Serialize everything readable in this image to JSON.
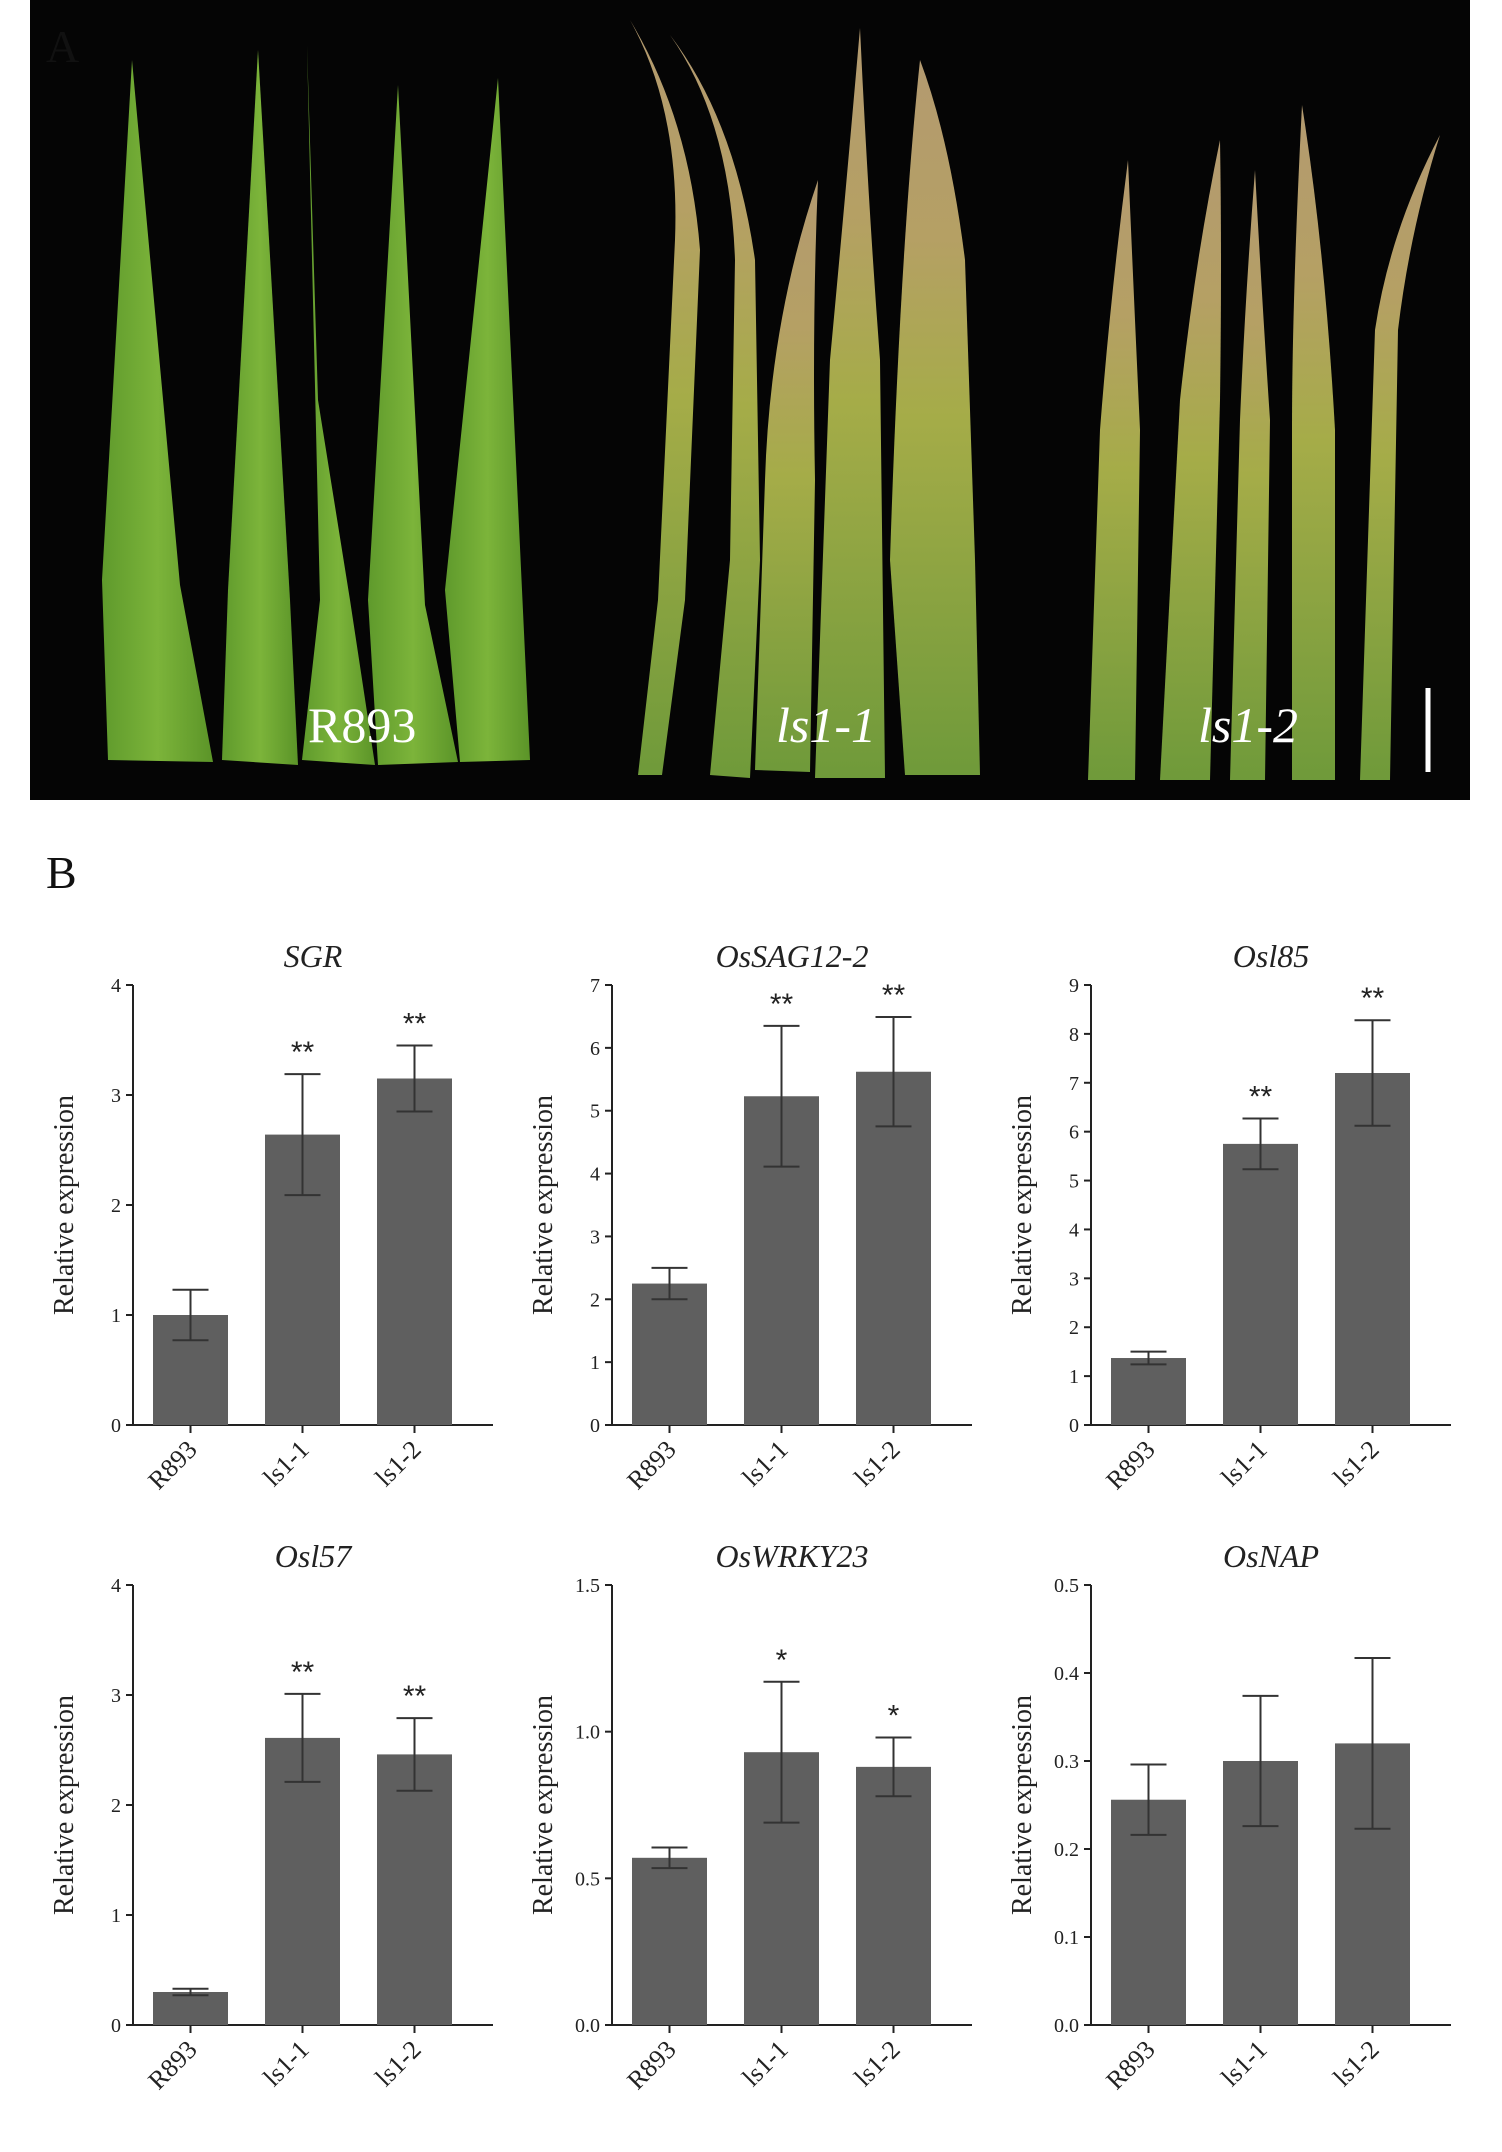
{
  "panel_a": {
    "letter": "A",
    "labels": [
      "R893",
      "ls1-1",
      "ls1-2"
    ]
  },
  "panel_b": {
    "letter": "B"
  },
  "chart_data": [
    {
      "type": "bar",
      "title": "SGR",
      "ylabel": "Relative expression",
      "ylim": [
        0,
        4
      ],
      "yticks": [
        "0",
        "1",
        "2",
        "3",
        "4"
      ],
      "categories": [
        "R893",
        "ls1-1",
        "ls1-2"
      ],
      "values": [
        1.0,
        2.64,
        3.15
      ],
      "errors": [
        0.23,
        0.55,
        0.3
      ],
      "significance": [
        "",
        "**",
        "**"
      ],
      "bar_color": "#5f5f5f"
    },
    {
      "type": "bar",
      "title": "OsSAG12-2",
      "ylabel": "Relative expression",
      "ylim": [
        0,
        7
      ],
      "yticks": [
        "0",
        "1",
        "2",
        "3",
        "4",
        "5",
        "6",
        "7"
      ],
      "categories": [
        "R893",
        "ls1-1",
        "ls1-2"
      ],
      "values": [
        2.25,
        5.23,
        5.62
      ],
      "errors": [
        0.25,
        1.12,
        0.87
      ],
      "significance": [
        "",
        "**",
        "**"
      ],
      "bar_color": "#5f5f5f"
    },
    {
      "type": "bar",
      "title": "Osl85",
      "ylabel": "Relative expression",
      "ylim": [
        0,
        9
      ],
      "yticks": [
        "0",
        "1",
        "2",
        "3",
        "4",
        "5",
        "6",
        "7",
        "8",
        "9"
      ],
      "categories": [
        "R893",
        "ls1-1",
        "ls1-2"
      ],
      "values": [
        1.37,
        5.75,
        7.2
      ],
      "errors": [
        0.13,
        0.52,
        1.08
      ],
      "significance": [
        "",
        "**",
        "**"
      ],
      "bar_color": "#5f5f5f"
    },
    {
      "type": "bar",
      "title": "Osl57",
      "ylabel": "Relative expression",
      "ylim": [
        0,
        4
      ],
      "yticks": [
        "0",
        "1",
        "2",
        "3",
        "4"
      ],
      "categories": [
        "R893",
        "ls1-1",
        "ls1-2"
      ],
      "values": [
        0.3,
        2.61,
        2.46
      ],
      "errors": [
        0.03,
        0.4,
        0.33
      ],
      "significance": [
        "",
        "**",
        "**"
      ],
      "bar_color": "#5f5f5f"
    },
    {
      "type": "bar",
      "title": "OsWRKY23",
      "ylabel": "Relative expression",
      "ylim": [
        0,
        1.5
      ],
      "yticks": [
        "0.0",
        "0.5",
        "1.0",
        "1.5"
      ],
      "categories": [
        "R893",
        "ls1-1",
        "ls1-2"
      ],
      "values": [
        0.57,
        0.93,
        0.88
      ],
      "errors": [
        0.035,
        0.24,
        0.1
      ],
      "significance": [
        "",
        "*",
        "*"
      ],
      "bar_color": "#5f5f5f"
    },
    {
      "type": "bar",
      "title": "OsNAP",
      "ylabel": "Relative expression",
      "ylim": [
        0,
        0.5
      ],
      "yticks": [
        "0.0",
        "0.1",
        "0.2",
        "0.3",
        "0.4",
        "0.5"
      ],
      "categories": [
        "R893",
        "ls1-1",
        "ls1-2"
      ],
      "values": [
        0.256,
        0.3,
        0.32
      ],
      "errors": [
        0.04,
        0.074,
        0.097
      ],
      "significance": [
        "",
        "",
        ""
      ],
      "bar_color": "#5f5f5f"
    }
  ]
}
